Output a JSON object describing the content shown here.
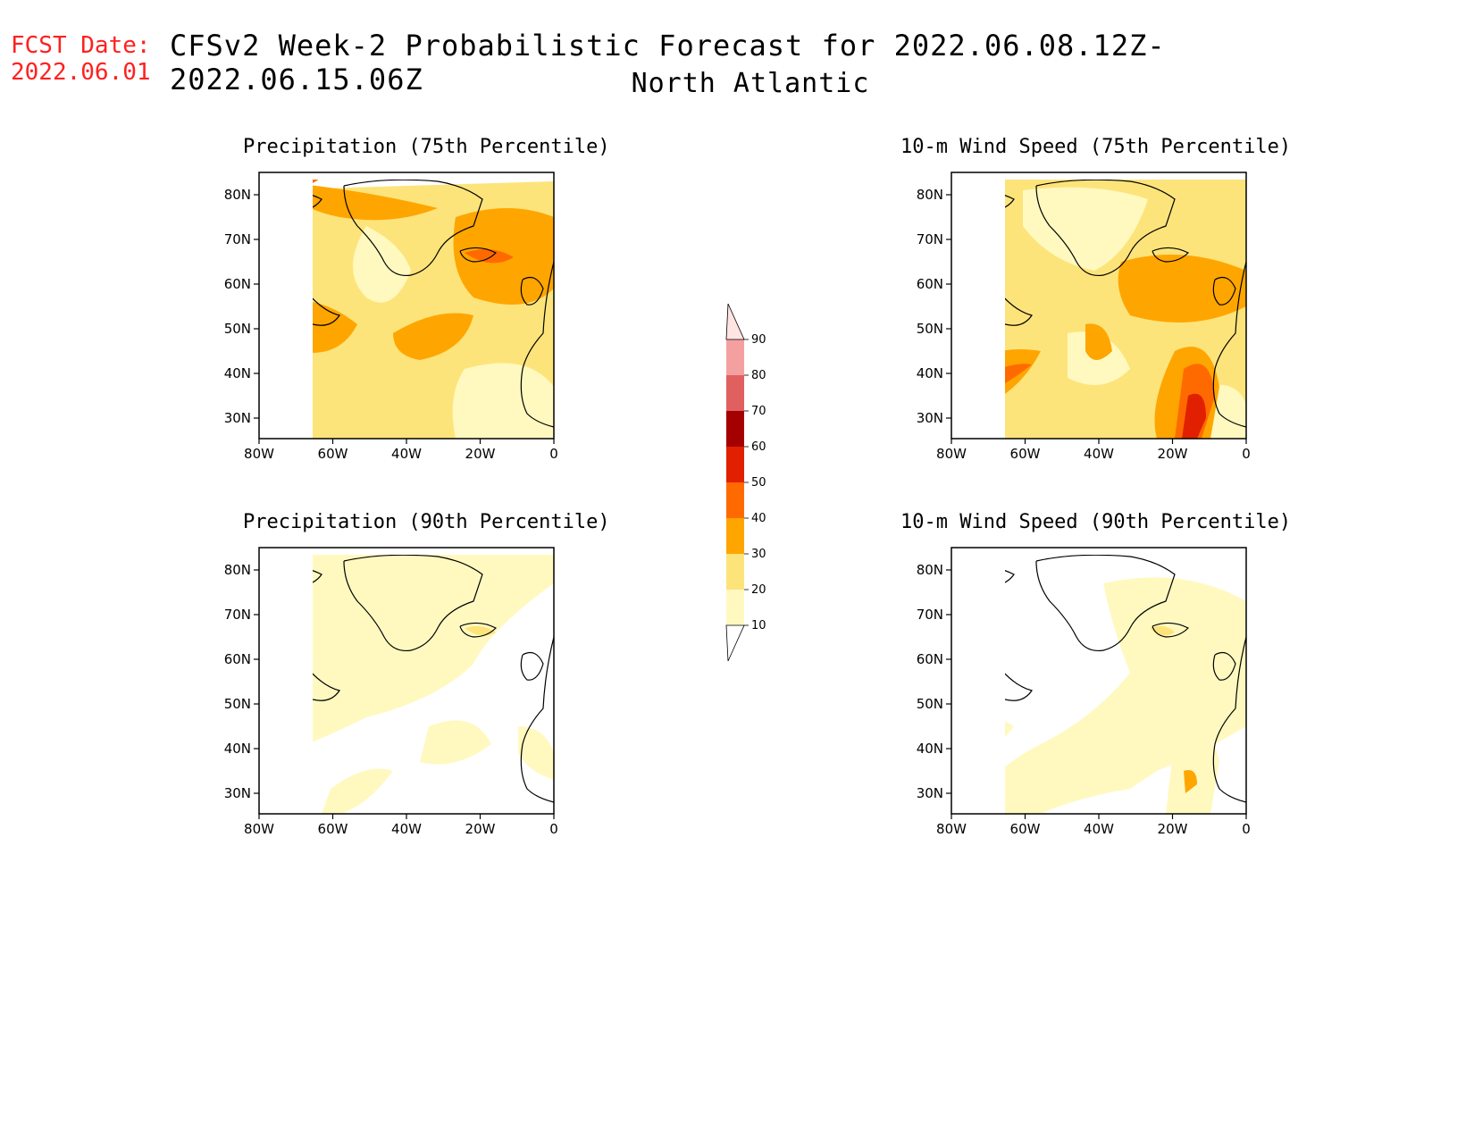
{
  "header": {
    "fcst_label": "FCST Date:",
    "fcst_date": "2022.06.01",
    "title": "CFSv2 Week-2 Probabilistic Forecast for 2022.06.08.12Z-2022.06.15.06Z",
    "region": "North Atlantic"
  },
  "axes": {
    "lat_ticks": [
      "80N",
      "70N",
      "60N",
      "50N",
      "40N",
      "30N"
    ],
    "lon_ticks": [
      "80W",
      "60W",
      "40W",
      "20W",
      "0"
    ]
  },
  "panels": [
    {
      "title": "Precipitation (75th Percentile)",
      "variable": "precip",
      "percentile": 75,
      "intensity": "high"
    },
    {
      "title": "10-m Wind Speed (75th Percentile)",
      "variable": "wind",
      "percentile": 75,
      "intensity": "high"
    },
    {
      "title": "Precipitation (90th Percentile)",
      "variable": "precip",
      "percentile": 90,
      "intensity": "low"
    },
    {
      "title": "10-m Wind Speed (90th Percentile)",
      "variable": "wind",
      "percentile": 90,
      "intensity": "low"
    }
  ],
  "colorbar": {
    "levels": [
      "10",
      "20",
      "30",
      "40",
      "50",
      "60",
      "70",
      "80",
      "90"
    ],
    "colors": [
      "#fff9c0",
      "#fde47a",
      "#ffa500",
      "#ff6a00",
      "#e02000",
      "#a50000",
      "#e06060",
      "#f4a0a0",
      "#ffe4e4"
    ]
  }
}
